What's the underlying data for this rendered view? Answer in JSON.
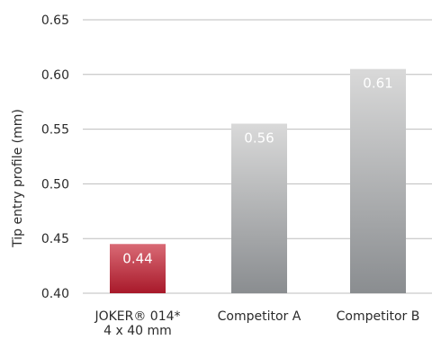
{
  "chart_data": {
    "type": "bar",
    "title": "",
    "xlabel": "",
    "ylabel": "Tip entry profile (mm)",
    "ylim": [
      0.4,
      0.65
    ],
    "yticks": [
      "0.40",
      "0.45",
      "0.50",
      "0.55",
      "0.60",
      "0.65"
    ],
    "grid": true,
    "categories": [
      {
        "line1": "JOKER® 014*",
        "line2": "4 x 40 mm"
      },
      {
        "line1": "Competitor A",
        "line2": ""
      },
      {
        "line1": "Competitor B",
        "line2": ""
      }
    ],
    "values": [
      0.445,
      0.555,
      0.605
    ],
    "value_labels": [
      "0.44",
      "0.56",
      "0.61"
    ],
    "colors": {
      "highlight_top": "#d96a75",
      "highlight_bottom": "#a8192a",
      "competitor_top": "#d9d9d9",
      "competitor_bottom": "#8a8d90"
    }
  }
}
